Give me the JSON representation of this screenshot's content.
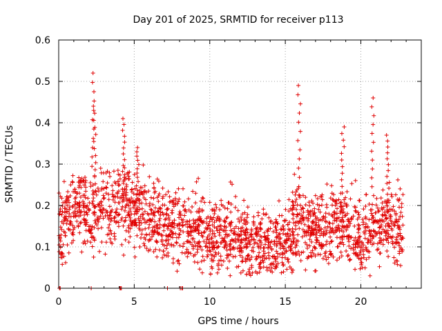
{
  "chart_data": {
    "type": "scatter",
    "title": "Day 201 of 2025, SRMTID for receiver p113",
    "xlabel": "GPS time / hours",
    "ylabel": "SRMTID / TECUs",
    "xlim": [
      0,
      24
    ],
    "ylim": [
      0,
      0.6
    ],
    "x_ticks": [
      0,
      5,
      10,
      15,
      20
    ],
    "x_tick_labels": [
      "0",
      "5",
      "10",
      "15",
      "20"
    ],
    "y_ticks": [
      0,
      0.1,
      0.2,
      0.3,
      0.4,
      0.5,
      0.6
    ],
    "y_tick_labels": [
      "0",
      "0.1",
      "0.2",
      "0.3",
      "0.4",
      "0.5",
      "0.6"
    ],
    "grid": true,
    "marker": "plus",
    "color": "#e00000",
    "data_end_hour": 22.8,
    "baseline_profile": [
      [
        0.0,
        0.15
      ],
      [
        0.5,
        0.17
      ],
      [
        1.0,
        0.2
      ],
      [
        1.5,
        0.2
      ],
      [
        2.0,
        0.17
      ],
      [
        2.5,
        0.19
      ],
      [
        3.0,
        0.2
      ],
      [
        4.0,
        0.2
      ],
      [
        5.0,
        0.19
      ],
      [
        6.0,
        0.17
      ],
      [
        7.0,
        0.16
      ],
      [
        8.0,
        0.15
      ],
      [
        9.0,
        0.14
      ],
      [
        10.0,
        0.13
      ],
      [
        11.0,
        0.13
      ],
      [
        12.0,
        0.13
      ],
      [
        13.0,
        0.1
      ],
      [
        14.0,
        0.1
      ],
      [
        14.6,
        0.11
      ],
      [
        15.0,
        0.13
      ],
      [
        16.0,
        0.16
      ],
      [
        17.0,
        0.14
      ],
      [
        18.0,
        0.15
      ],
      [
        19.0,
        0.15
      ],
      [
        20.0,
        0.13
      ],
      [
        21.0,
        0.14
      ],
      [
        22.0,
        0.16
      ],
      [
        22.8,
        0.13
      ]
    ],
    "spikes": [
      {
        "x": 2.3,
        "peak": 0.52
      },
      {
        "x": 2.35,
        "peak": 0.44
      },
      {
        "x": 4.3,
        "peak": 0.41
      },
      {
        "x": 5.2,
        "peak": 0.34
      },
      {
        "x": 15.9,
        "peak": 0.49
      },
      {
        "x": 18.8,
        "peak": 0.39
      },
      {
        "x": 20.8,
        "peak": 0.46
      },
      {
        "x": 21.8,
        "peak": 0.37
      }
    ],
    "zero_points": [
      [
        0.05,
        0
      ],
      [
        0.1,
        0
      ],
      [
        2.15,
        0
      ],
      [
        4.05,
        0
      ],
      [
        4.1,
        0
      ],
      [
        4.15,
        0
      ],
      [
        7.2,
        0
      ],
      [
        8.05,
        0
      ],
      [
        8.15,
        0
      ],
      [
        8.2,
        0
      ]
    ]
  }
}
